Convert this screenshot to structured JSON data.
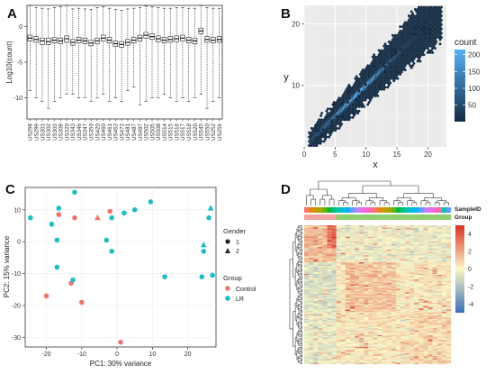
{
  "panels": {
    "a": "A",
    "b": "B",
    "c": "C",
    "d": "D"
  },
  "chart_data": [
    {
      "panel": "A",
      "type": "box",
      "ylabel": "Log10(count)",
      "ylim": [
        -13,
        3
      ],
      "yticks": [
        0,
        -5,
        -10
      ],
      "categories": [
        "US298",
        "US299",
        "US301",
        "US302",
        "US303",
        "US309",
        "US320",
        "US343",
        "US346",
        "US347",
        "US350",
        "US420",
        "US460",
        "US461",
        "US463",
        "US472",
        "US481",
        "US487",
        "US497",
        "US502",
        "US505",
        "US508",
        "US514",
        "US515",
        "US516",
        "US517",
        "US518",
        "US520",
        "US545",
        "US550",
        "US252",
        "US256"
      ],
      "boxes": [
        {
          "min": -9.0,
          "q1": -2.0,
          "median": -1.6,
          "q3": -1.2,
          "max": 3.0
        },
        {
          "min": -10.0,
          "q1": -2.2,
          "median": -1.8,
          "q3": -1.4,
          "max": 2.7
        },
        {
          "min": -10.5,
          "q1": -2.5,
          "median": -2.0,
          "q3": -1.6,
          "max": 2.6
        },
        {
          "min": -11.5,
          "q1": -2.5,
          "median": -2.1,
          "q3": -1.6,
          "max": 2.5
        },
        {
          "min": -10.5,
          "q1": -2.3,
          "median": -1.9,
          "q3": -1.5,
          "max": 2.7
        },
        {
          "min": -10.0,
          "q1": -2.4,
          "median": -2.0,
          "q3": -1.6,
          "max": 2.8
        },
        {
          "min": -9.5,
          "q1": -2.2,
          "median": -1.7,
          "q3": -1.3,
          "max": 3.0
        },
        {
          "min": -9.5,
          "q1": -2.6,
          "median": -2.2,
          "q3": -1.8,
          "max": 2.5
        },
        {
          "min": -10.0,
          "q1": -2.3,
          "median": -1.9,
          "q3": -1.5,
          "max": 2.6
        },
        {
          "min": -10.0,
          "q1": -2.4,
          "median": -2.0,
          "q3": -1.6,
          "max": 2.5
        },
        {
          "min": -10.5,
          "q1": -2.7,
          "median": -2.3,
          "q3": -1.9,
          "max": 2.4
        },
        {
          "min": -10.0,
          "q1": -2.4,
          "median": -2.0,
          "q3": -1.6,
          "max": 2.7
        },
        {
          "min": -9.5,
          "q1": -2.0,
          "median": -1.6,
          "q3": -1.2,
          "max": 2.8
        },
        {
          "min": -10.5,
          "q1": -2.3,
          "median": -1.9,
          "q3": -1.5,
          "max": 2.6
        },
        {
          "min": -10.0,
          "q1": -2.8,
          "median": -2.4,
          "q3": -2.0,
          "max": 2.4
        },
        {
          "min": -10.5,
          "q1": -2.9,
          "median": -2.5,
          "q3": -2.1,
          "max": 2.3
        },
        {
          "min": -9.0,
          "q1": -2.6,
          "median": -2.2,
          "q3": -1.8,
          "max": 2.5
        },
        {
          "min": -8.5,
          "q1": -2.3,
          "median": -1.9,
          "q3": -1.5,
          "max": 2.6
        },
        {
          "min": -11.0,
          "q1": -2.0,
          "median": -1.6,
          "q3": -1.2,
          "max": 2.7
        },
        {
          "min": -10.5,
          "q1": -1.6,
          "median": -1.2,
          "q3": -0.8,
          "max": 2.9
        },
        {
          "min": -10.0,
          "q1": -1.8,
          "median": -1.4,
          "q3": -1.0,
          "max": 2.8
        },
        {
          "min": -10.0,
          "q1": -2.1,
          "median": -1.7,
          "q3": -1.3,
          "max": 2.7
        },
        {
          "min": -9.5,
          "q1": -2.3,
          "median": -1.9,
          "q3": -1.5,
          "max": 2.6
        },
        {
          "min": -10.0,
          "q1": -2.2,
          "median": -1.8,
          "q3": -1.4,
          "max": 2.6
        },
        {
          "min": -10.5,
          "q1": -2.1,
          "median": -1.7,
          "q3": -1.3,
          "max": 2.7
        },
        {
          "min": -10.0,
          "q1": -2.0,
          "median": -1.6,
          "q3": -1.2,
          "max": 2.7
        },
        {
          "min": -10.5,
          "q1": -2.3,
          "median": -1.9,
          "q3": -1.5,
          "max": 2.6
        },
        {
          "min": -10.0,
          "q1": -2.4,
          "median": -2.0,
          "q3": -1.6,
          "max": 2.6
        },
        {
          "min": -9.5,
          "q1": -1.0,
          "median": -0.6,
          "q3": -0.2,
          "max": 3.0
        },
        {
          "min": -11.5,
          "q1": -2.2,
          "median": -1.8,
          "q3": -1.4,
          "max": 2.7
        },
        {
          "min": -10.5,
          "q1": -2.3,
          "median": -1.9,
          "q3": -1.5,
          "max": 2.6
        },
        {
          "min": -10.0,
          "q1": -2.2,
          "median": -1.8,
          "q3": -1.4,
          "max": 2.6
        }
      ]
    },
    {
      "panel": "B",
      "type": "hexbin",
      "xlabel": "x",
      "ylabel": "y",
      "xlim": [
        0,
        23
      ],
      "ylim": [
        0,
        23
      ],
      "xticks": [
        0,
        5,
        10,
        15,
        20
      ],
      "yticks": [
        10,
        20
      ],
      "grid": true,
      "legend": {
        "title": "count",
        "ticks": [
          50,
          100,
          150,
          200
        ],
        "range": [
          1,
          215
        ],
        "low_color": "#132b43",
        "high_color": "#56b1f7"
      }
    },
    {
      "panel": "C",
      "type": "scatter",
      "xlabel": "PC1: 30% variance",
      "ylabel": "PC2: 15% variance",
      "xlim": [
        -26,
        28
      ],
      "ylim": [
        -33,
        17
      ],
      "xticks": [
        -20,
        -10,
        0,
        10,
        20
      ],
      "yticks": [
        10,
        0,
        -10,
        -20,
        -30
      ],
      "legend_gender": {
        "title": "Gender",
        "items": [
          "1",
          "2"
        ]
      },
      "legend_group": {
        "title": "Group",
        "items": [
          "Control",
          "LR"
        ],
        "colors": [
          "#e8786e",
          "#1fbcc3"
        ]
      },
      "points": [
        {
          "x": -24.5,
          "y": 7.5,
          "group": "LR",
          "gender": "1"
        },
        {
          "x": -12,
          "y": 15.5,
          "group": "LR",
          "gender": "1"
        },
        {
          "x": -16.5,
          "y": 10.5,
          "group": "LR",
          "gender": "1"
        },
        {
          "x": -16.5,
          "y": 8.5,
          "group": "Control",
          "gender": "1"
        },
        {
          "x": -12,
          "y": 7.5,
          "group": "Control",
          "gender": "1"
        },
        {
          "x": -18.5,
          "y": 5.5,
          "group": "LR",
          "gender": "1"
        },
        {
          "x": -17,
          "y": 0.5,
          "group": "LR",
          "gender": "1"
        },
        {
          "x": -17,
          "y": -8,
          "group": "LR",
          "gender": "1"
        },
        {
          "x": -13,
          "y": -13,
          "group": "Control",
          "gender": "1"
        },
        {
          "x": -12.5,
          "y": -12,
          "group": "LR",
          "gender": "1"
        },
        {
          "x": -20,
          "y": -17,
          "group": "Control",
          "gender": "1"
        },
        {
          "x": -10,
          "y": -19,
          "group": "Control",
          "gender": "1"
        },
        {
          "x": -5.5,
          "y": 7.5,
          "group": "Control",
          "gender": "2"
        },
        {
          "x": -2,
          "y": 9.5,
          "group": "Control",
          "gender": "1"
        },
        {
          "x": -1.5,
          "y": 7.5,
          "group": "LR",
          "gender": "1"
        },
        {
          "x": -3,
          "y": 0.5,
          "group": "LR",
          "gender": "1"
        },
        {
          "x": -1.5,
          "y": -3,
          "group": "LR",
          "gender": "1"
        },
        {
          "x": 2,
          "y": 9,
          "group": "LR",
          "gender": "1"
        },
        {
          "x": 5,
          "y": 10,
          "group": "LR",
          "gender": "1"
        },
        {
          "x": 9.5,
          "y": 12.5,
          "group": "LR",
          "gender": "1"
        },
        {
          "x": 13.5,
          "y": -11,
          "group": "LR",
          "gender": "1"
        },
        {
          "x": 24.5,
          "y": -1,
          "group": "LR",
          "gender": "2"
        },
        {
          "x": 24.5,
          "y": -3,
          "group": "LR",
          "gender": "1"
        },
        {
          "x": 24,
          "y": -11,
          "group": "LR",
          "gender": "1"
        },
        {
          "x": 26.5,
          "y": 10.5,
          "group": "LR",
          "gender": "2"
        },
        {
          "x": 26,
          "y": 7.5,
          "group": "LR",
          "gender": "1"
        },
        {
          "x": 27,
          "y": -10.5,
          "group": "LR",
          "gender": "1"
        },
        {
          "x": 1,
          "y": -31.5,
          "group": "Control",
          "gender": "1"
        }
      ]
    },
    {
      "panel": "D",
      "type": "heatmap",
      "annotation_labels": [
        "SampleID",
        "Group"
      ],
      "legend_ticks": [
        4,
        2,
        0,
        -2,
        -4
      ],
      "legend_range": [
        -5,
        5
      ],
      "colors": {
        "low": "#3b6fb6",
        "mid": "#fbf7c6",
        "high": "#d73027"
      },
      "n_samples": 32,
      "n_genes": 120,
      "group_colors": {
        "Control": "#f2a3a0",
        "LR": "#8fce6d"
      },
      "group_split": 7
    }
  ]
}
